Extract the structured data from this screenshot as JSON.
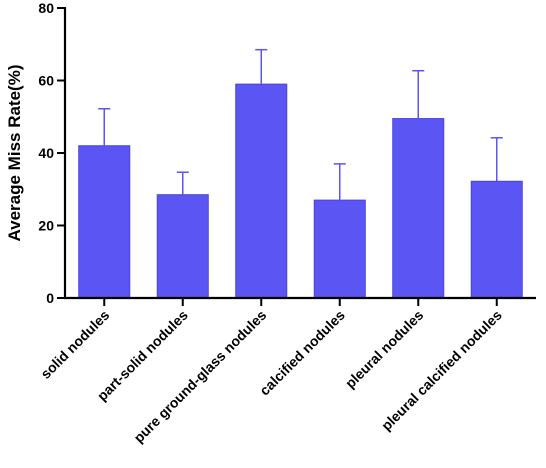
{
  "chart_data": {
    "type": "bar",
    "ylabel": "Average Miss Rate(%)",
    "xlabel": "",
    "ylim": [
      0,
      80
    ],
    "yticks": [
      "0",
      "20",
      "40",
      "60",
      "80"
    ],
    "categories": [
      "solid nodules",
      "part-solid nodules",
      "pure ground-glass nodules",
      "calcified nodules",
      "pleural nodules",
      "pleural calcified nodules"
    ],
    "values": [
      42,
      28.5,
      59,
      27,
      49.5,
      32.2
    ],
    "error_upper": [
      10.2,
      6.2,
      9.5,
      10,
      13.2,
      12
    ],
    "grid": false,
    "legend": "none",
    "bar_color": "#5b55f4",
    "bar_edge_color": "#4a44d8",
    "error_bar_color": "#5b55f4"
  }
}
